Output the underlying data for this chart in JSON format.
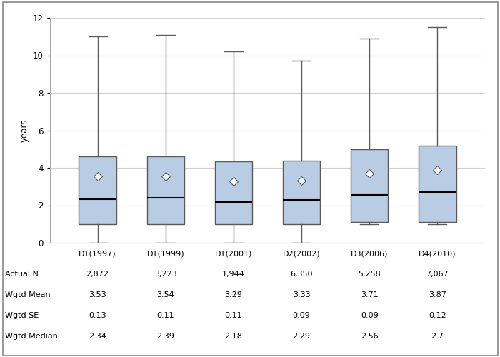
{
  "ylabel": "years",
  "categories": [
    "D1(1997)",
    "D1(1999)",
    "D1(2001)",
    "D2(2002)",
    "D3(2006)",
    "D4(2010)"
  ],
  "box_stats": [
    {
      "whislo": 0.0,
      "q1": 1.0,
      "med": 2.34,
      "q3": 4.6,
      "whishi": 11.0,
      "mean": 3.53
    },
    {
      "whislo": 0.0,
      "q1": 1.0,
      "med": 2.39,
      "q3": 4.6,
      "whishi": 11.1,
      "mean": 3.54
    },
    {
      "whislo": 0.0,
      "q1": 1.0,
      "med": 2.18,
      "q3": 4.35,
      "whishi": 10.2,
      "mean": 3.29
    },
    {
      "whislo": 0.0,
      "q1": 1.0,
      "med": 2.29,
      "q3": 4.4,
      "whishi": 9.7,
      "mean": 3.33
    },
    {
      "whislo": 1.0,
      "q1": 1.1,
      "med": 2.56,
      "q3": 5.0,
      "whishi": 10.9,
      "mean": 3.71
    },
    {
      "whislo": 1.0,
      "q1": 1.1,
      "med": 2.7,
      "q3": 5.2,
      "whishi": 11.5,
      "mean": 3.87
    }
  ],
  "table_rows": [
    {
      "label": "Actual N",
      "values": [
        "2,872",
        "3,223",
        "1,944",
        "6,350",
        "5,258",
        "7,067"
      ]
    },
    {
      "label": "Wgtd Mean",
      "values": [
        "3.53",
        "3.54",
        "3.29",
        "3.33",
        "3.71",
        "3.87"
      ]
    },
    {
      "label": "Wgtd SE",
      "values": [
        "0.13",
        "0.11",
        "0.11",
        "0.09",
        "0.09",
        "0.12"
      ]
    },
    {
      "label": "Wgtd Median",
      "values": [
        "2.34",
        "2.39",
        "2.18",
        "2.29",
        "2.56",
        "2.7"
      ]
    }
  ],
  "box_color": "#b8cce4",
  "box_edge_color": "#5a5a5a",
  "median_color": "#000000",
  "whisker_color": "#5a5a5a",
  "mean_marker_color": "#ffffff",
  "mean_marker_edge_color": "#5a5a5a",
  "ylim": [
    0,
    12
  ],
  "yticks": [
    0,
    2,
    4,
    6,
    8,
    10,
    12
  ],
  "background_color": "#ffffff",
  "grid_color": "#d0d0d0",
  "axis_fontsize": 8.5,
  "table_fontsize": 8
}
